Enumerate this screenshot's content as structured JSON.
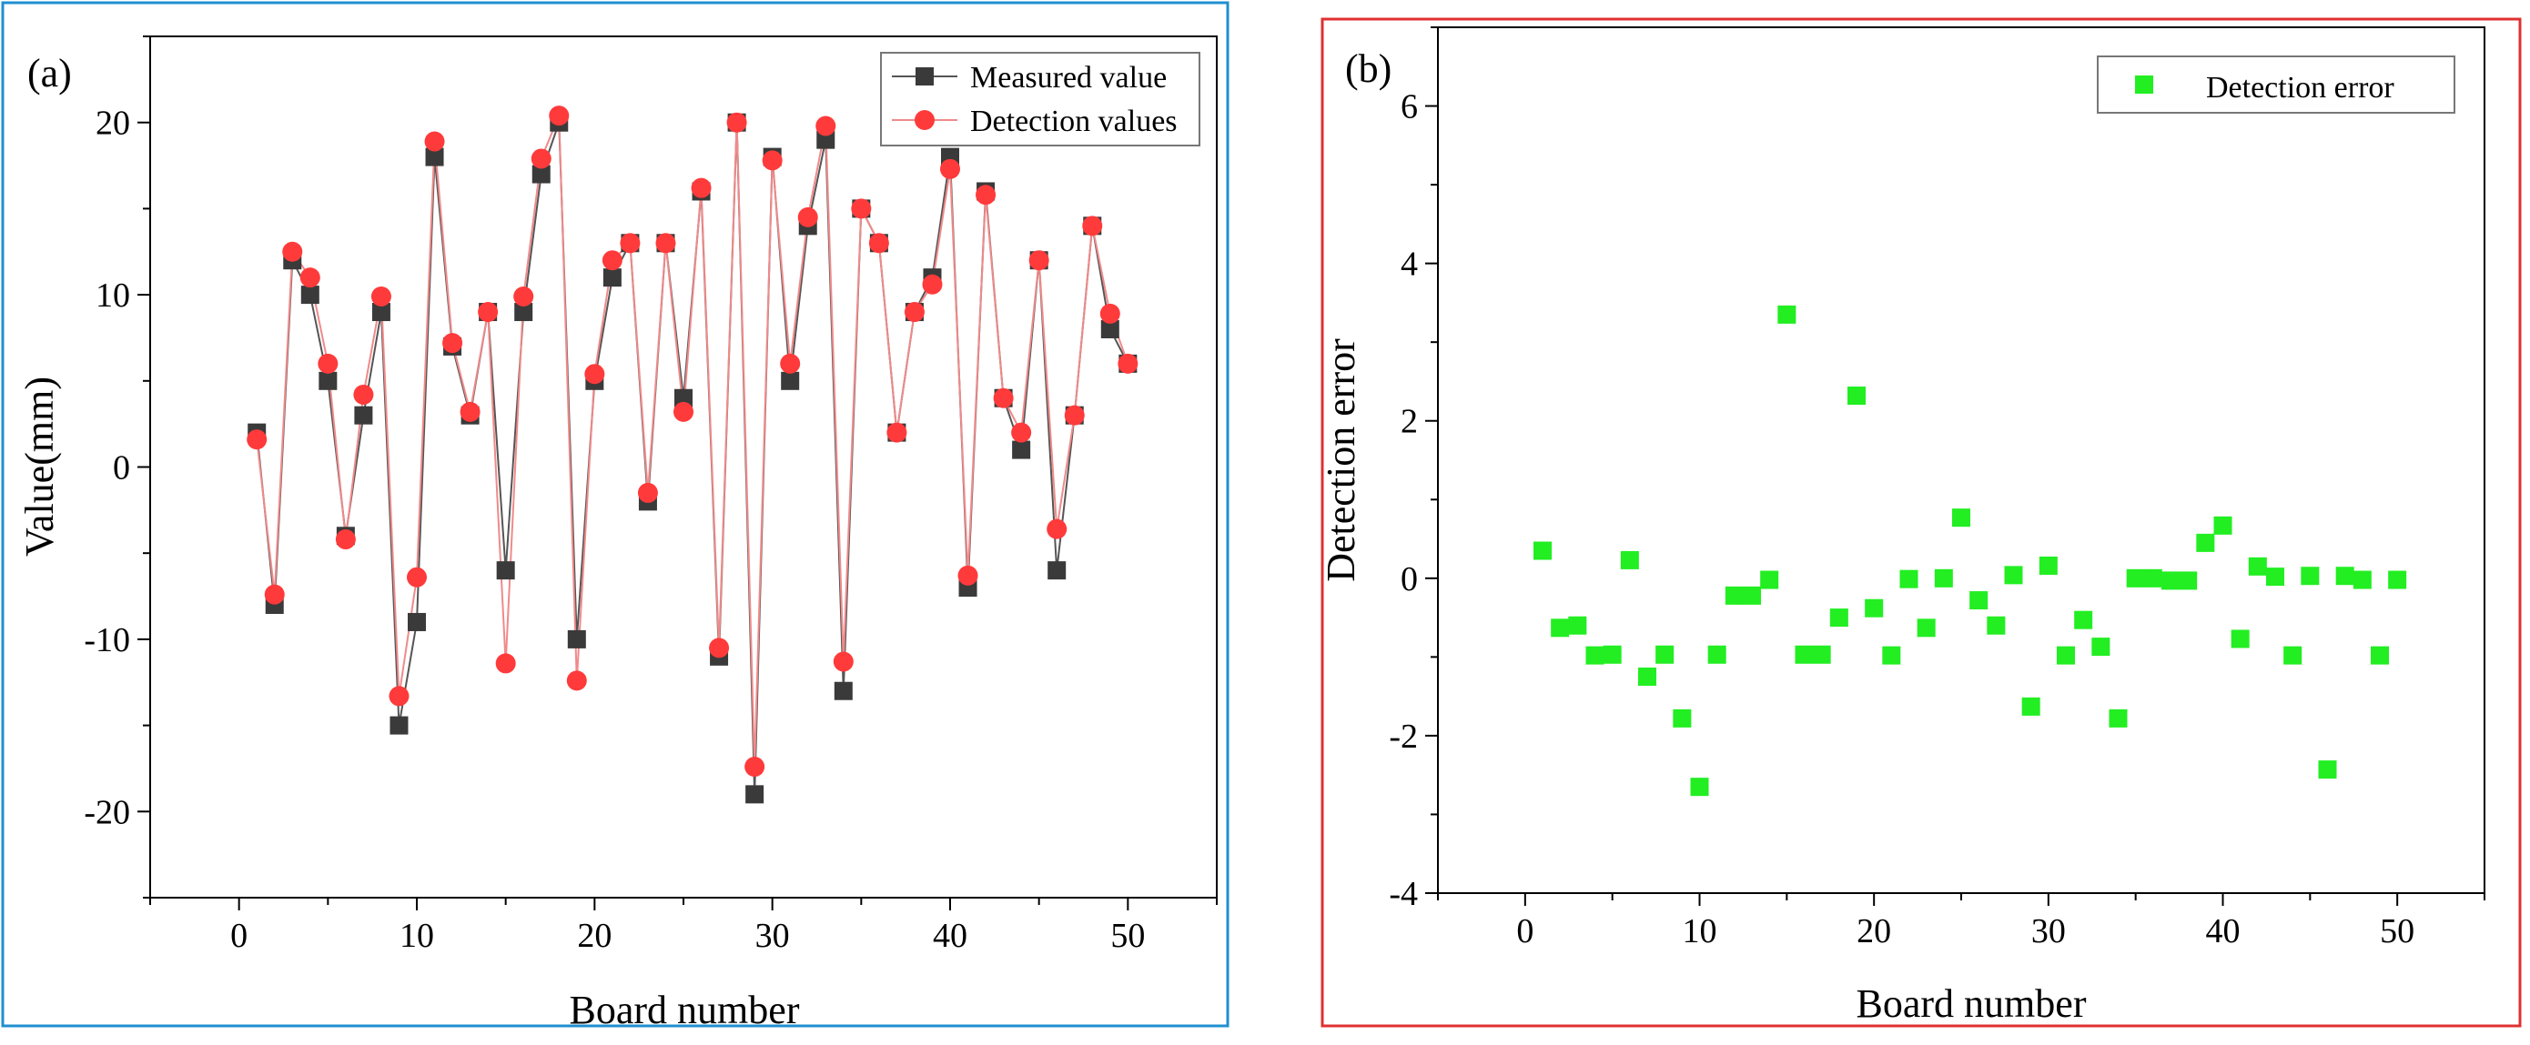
{
  "chart_data": [
    {
      "type": "line",
      "panel_label": "(a)",
      "xlabel": "Board number",
      "ylabel": "Value(mm)",
      "xlim": [
        -5,
        55
      ],
      "ylim": [
        -25,
        25
      ],
      "xticks": [
        0,
        10,
        20,
        30,
        40,
        50
      ],
      "yticks": [
        -20,
        -10,
        0,
        10,
        20
      ],
      "xtick_labels": [
        "0",
        "10",
        "20",
        "30",
        "40",
        "50"
      ],
      "ytick_labels": [
        "-20",
        "-10",
        "0",
        "10",
        "20"
      ],
      "legend_position": "top-right",
      "border_color": "#1f8fd0",
      "x": [
        1,
        2,
        3,
        4,
        5,
        6,
        7,
        8,
        9,
        10,
        11,
        12,
        13,
        14,
        15,
        16,
        17,
        18,
        19,
        20,
        21,
        22,
        23,
        24,
        25,
        26,
        27,
        28,
        29,
        30,
        31,
        32,
        33,
        34,
        35,
        36,
        37,
        38,
        39,
        40,
        41,
        42,
        43,
        44,
        45,
        46,
        47,
        48,
        49,
        50
      ],
      "series": [
        {
          "name": "Measured value",
          "marker": "square",
          "color": "#3a3a3a",
          "line_color": "#555555",
          "values": [
            2,
            -8,
            12,
            10,
            5,
            -4,
            3,
            9,
            -15,
            -9,
            18,
            7,
            3,
            9,
            -6,
            9,
            17,
            20,
            -10,
            5,
            11,
            13,
            -2,
            13,
            4,
            16,
            -11,
            20,
            -19,
            18,
            5,
            14,
            19,
            -13,
            15,
            13,
            2,
            9,
            11,
            18,
            -7,
            16,
            4,
            1,
            12,
            -6,
            3,
            14,
            8,
            6
          ]
        },
        {
          "name": "Detection values",
          "marker": "circle",
          "color": "#ff3a3a",
          "line_color": "#f08a8a",
          "values": [
            1.6,
            -7.4,
            12.5,
            11.0,
            6.0,
            -4.2,
            4.2,
            9.9,
            -13.3,
            -6.4,
            18.9,
            7.2,
            3.2,
            9.0,
            -11.4,
            9.9,
            17.9,
            20.4,
            -12.4,
            5.4,
            12.0,
            13.0,
            -1.5,
            13.0,
            3.2,
            16.2,
            -10.5,
            20.0,
            -17.4,
            17.8,
            6.0,
            14.5,
            19.8,
            -11.3,
            15.0,
            13.0,
            2.0,
            9.0,
            10.6,
            17.3,
            -6.3,
            15.8,
            4.0,
            2.0,
            12.0,
            -3.6,
            3.0,
            14.0,
            8.9,
            6.0
          ]
        }
      ]
    },
    {
      "type": "scatter",
      "panel_label": "(b)",
      "xlabel": "Board number",
      "ylabel": "Detection error",
      "xlim": [
        -5,
        55
      ],
      "ylim": [
        -4,
        7
      ],
      "xticks": [
        0,
        10,
        20,
        30,
        40,
        50
      ],
      "yticks": [
        -4,
        -2,
        0,
        2,
        4,
        6
      ],
      "xtick_labels": [
        "0",
        "10",
        "20",
        "30",
        "40",
        "50"
      ],
      "ytick_labels": [
        "-4",
        "-2",
        "0",
        "2",
        "4",
        "6"
      ],
      "legend_position": "top-right",
      "border_color": "#e03030",
      "x": [
        1,
        2,
        3,
        4,
        5,
        6,
        7,
        8,
        9,
        10,
        11,
        12,
        13,
        14,
        15,
        16,
        17,
        18,
        19,
        20,
        21,
        22,
        23,
        24,
        25,
        26,
        27,
        28,
        29,
        30,
        31,
        32,
        33,
        34,
        35,
        36,
        37,
        38,
        39,
        40,
        41,
        42,
        43,
        44,
        45,
        46,
        47,
        48,
        49,
        50
      ],
      "series": [
        {
          "name": "Detection error",
          "marker": "square",
          "color": "#22ee22",
          "values": [
            0.35,
            -0.63,
            -0.6,
            -0.98,
            -0.97,
            0.23,
            -1.25,
            -0.97,
            -1.78,
            -2.65,
            -0.97,
            -0.22,
            -0.22,
            -0.02,
            3.35,
            -0.97,
            -0.97,
            -0.5,
            2.32,
            -0.38,
            -0.98,
            -0.01,
            -0.63,
            0.0,
            0.77,
            -0.28,
            -0.6,
            0.04,
            -1.63,
            0.16,
            -0.98,
            -0.53,
            -0.87,
            -1.78,
            0.0,
            0.0,
            -0.03,
            -0.03,
            0.45,
            0.67,
            -0.77,
            0.15,
            0.02,
            -0.98,
            0.03,
            -2.43,
            0.03,
            -0.02,
            -0.98,
            -0.02
          ]
        }
      ]
    }
  ]
}
